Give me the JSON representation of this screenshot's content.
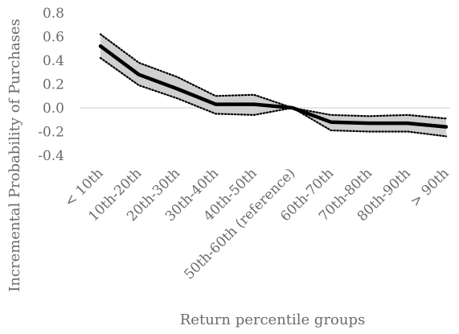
{
  "chart_data": {
    "type": "line",
    "title": "",
    "xlabel": "Return percentile groups",
    "ylabel": "Incremental Probability of Purchases",
    "categories": [
      "< 10th",
      "10th-20th",
      "20th-30th",
      "30th-40th",
      "40th-50th",
      "50th-60th (reference)",
      "60th-70th",
      "70th-80th",
      "80th-90th",
      "> 90th"
    ],
    "series": [
      {
        "values": [
          0.52,
          0.28,
          0.16,
          0.03,
          0.03,
          0.0,
          -0.12,
          -0.13,
          -0.13,
          -0.16
        ]
      },
      {
        "values": [
          0.62,
          0.38,
          0.26,
          0.1,
          0.11,
          0.0,
          -0.06,
          -0.07,
          -0.06,
          -0.09
        ]
      },
      {
        "values": [
          0.42,
          0.19,
          0.08,
          -0.05,
          -0.06,
          0.0,
          -0.19,
          -0.2,
          -0.2,
          -0.24
        ]
      }
    ],
    "band": "shaded confidence interval between upper and lower dotted series",
    "ylim": [
      -0.4,
      0.8
    ],
    "yticks": [
      "-0.4",
      "-0.2",
      "0.0",
      "0.2",
      "0.4",
      "0.6",
      "0.8"
    ],
    "grid": false,
    "legend": "none",
    "colors": {
      "line": "#000000",
      "band_fill": "#d0d0d0",
      "bound": "#000000",
      "zero_line": "#cfcfcf",
      "text": "#6b6b6b"
    }
  }
}
